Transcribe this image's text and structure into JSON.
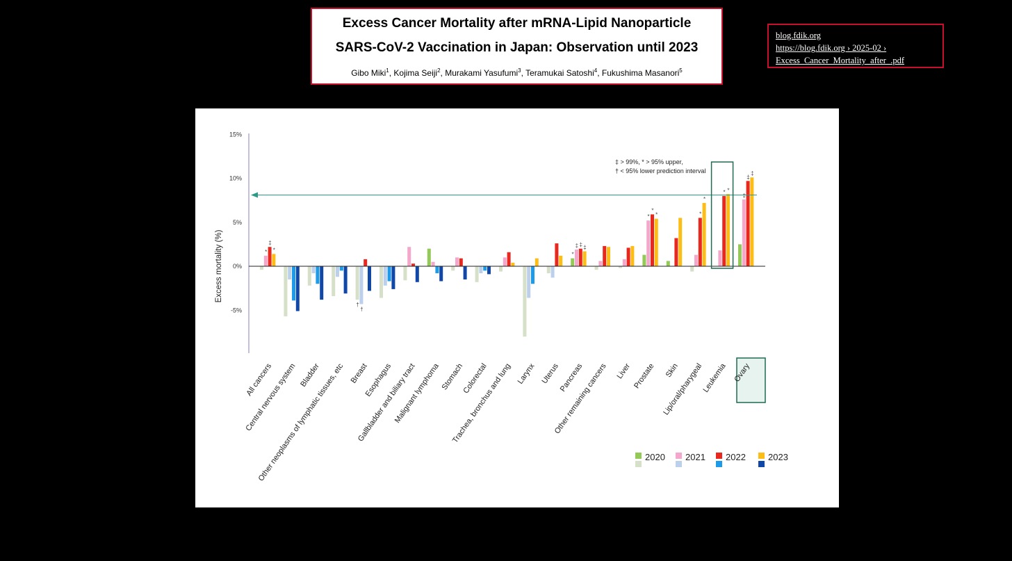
{
  "header": {
    "title_line1": "Excess Cancer Mortality after mRNA-Lipid Nanoparticle",
    "title_line2": "SARS-CoV-2 Vaccination in Japan: Observation until 2023",
    "authors": [
      {
        "name": "Gibo Miki",
        "sup": "1"
      },
      {
        "name": "Kojima Seiji",
        "sup": "2"
      },
      {
        "name": "Murakami Yasufumi",
        "sup": "3"
      },
      {
        "name": "Teramukai Satoshi",
        "sup": "4"
      },
      {
        "name": "Fukushima Masanori",
        "sup": "5"
      }
    ]
  },
  "source": {
    "line1": "blog.fdik.org",
    "line2": "https://blog.fdik.org › 2025-02 ›",
    "line3": "Excess_Cancer_Mortality_after_.pdf"
  },
  "colors": {
    "pos": [
      "#92c957",
      "#f4a7cb",
      "#e8281f",
      "#fbbd16"
    ],
    "neg": [
      "#d6dfc8",
      "#bcd0ec",
      "#1d9be8",
      "#1147a6"
    ],
    "highlight": "#1e6b50",
    "arrow": "#2b9a86"
  },
  "chart_data": {
    "type": "bar",
    "title": "",
    "xlabel": "",
    "ylabel": "Excess  mortality (%)",
    "ylim": [
      -10,
      15
    ],
    "yticks": [
      15,
      10,
      5,
      0,
      -5
    ],
    "ytick_labels": [
      "15%",
      "10%",
      "5%",
      "0%",
      "-5%"
    ],
    "legend": [
      "2020",
      "2021",
      "2022",
      "2023"
    ],
    "legend_position": "bottom-right",
    "annotation": [
      "‡ > 99%, * > 95% upper,",
      "† < 95% lower prediction interval"
    ],
    "reference_arrow_value": 8.1,
    "highlight_category": "Leukemia",
    "categories": [
      "All cancers",
      "Central nervous system",
      "Bladder",
      "Other neoplasms of lymphatic tissues, etc",
      "Breast",
      "Esophagus",
      "Gallbladder and biliary tract",
      "Malignant lymphoma",
      "Stomach",
      "Colorectal",
      "Trachea, bronchus and lung",
      "Larynx",
      "Uterus",
      "Pancreas",
      "Other remaining cancers",
      "Liver",
      "Prostate",
      "Skin",
      "Lip/oral/pharygeal",
      "Leukemia",
      "Ovary"
    ],
    "series": [
      {
        "name": "2020",
        "values": [
          -0.4,
          -5.7,
          -2.2,
          -3.4,
          -3.8,
          -3.6,
          -1.6,
          2.0,
          -0.5,
          -1.8,
          -0.6,
          -8.0,
          -0.8,
          0.9,
          -0.4,
          -0.2,
          1.3,
          0.6,
          -0.6,
          0.0,
          2.5
        ]
      },
      {
        "name": "2021",
        "values": [
          1.2,
          -1.5,
          -0.8,
          -1.2,
          -4.3,
          -2.2,
          2.2,
          0.5,
          1.0,
          -0.8,
          1.0,
          -3.6,
          -1.3,
          1.9,
          0.6,
          0.8,
          5.2,
          0.0,
          1.3,
          1.8,
          7.6
        ]
      },
      {
        "name": "2022",
        "values": [
          2.2,
          -3.9,
          -2.0,
          -0.5,
          0.8,
          -1.7,
          0.3,
          -0.8,
          0.9,
          -0.5,
          1.6,
          -2.0,
          2.6,
          2.0,
          2.3,
          2.1,
          5.9,
          3.2,
          5.5,
          8.0,
          9.7
        ]
      },
      {
        "name": "2023",
        "values": [
          1.4,
          -5.1,
          -3.8,
          -3.1,
          -2.8,
          -2.6,
          -1.8,
          -1.7,
          -1.5,
          -0.9,
          0.4,
          0.9,
          1.2,
          1.7,
          2.2,
          2.3,
          5.4,
          5.5,
          7.2,
          8.2,
          10.1
        ]
      }
    ],
    "markers": [
      {
        "category": 0,
        "series": 1,
        "symbol": "*"
      },
      {
        "category": 0,
        "series": 2,
        "symbol": "‡"
      },
      {
        "category": 0,
        "series": 3,
        "symbol": "*"
      },
      {
        "category": 4,
        "series": 0,
        "symbol": "†"
      },
      {
        "category": 4,
        "series": 1,
        "symbol": "†"
      },
      {
        "category": 13,
        "series": 0,
        "symbol": "*"
      },
      {
        "category": 13,
        "series": 1,
        "symbol": "‡"
      },
      {
        "category": 13,
        "series": 2,
        "symbol": "‡"
      },
      {
        "category": 13,
        "series": 3,
        "symbol": "‡"
      },
      {
        "category": 16,
        "series": 1,
        "symbol": "*"
      },
      {
        "category": 16,
        "series": 2,
        "symbol": "*"
      },
      {
        "category": 16,
        "series": 3,
        "symbol": "*"
      },
      {
        "category": 18,
        "series": 2,
        "symbol": "*"
      },
      {
        "category": 18,
        "series": 3,
        "symbol": "*"
      },
      {
        "category": 19,
        "series": 2,
        "symbol": "*"
      },
      {
        "category": 19,
        "series": 3,
        "symbol": "*"
      },
      {
        "category": 20,
        "series": 1,
        "symbol": "‡"
      },
      {
        "category": 20,
        "series": 2,
        "symbol": "‡"
      },
      {
        "category": 20,
        "series": 3,
        "symbol": "‡"
      }
    ]
  }
}
